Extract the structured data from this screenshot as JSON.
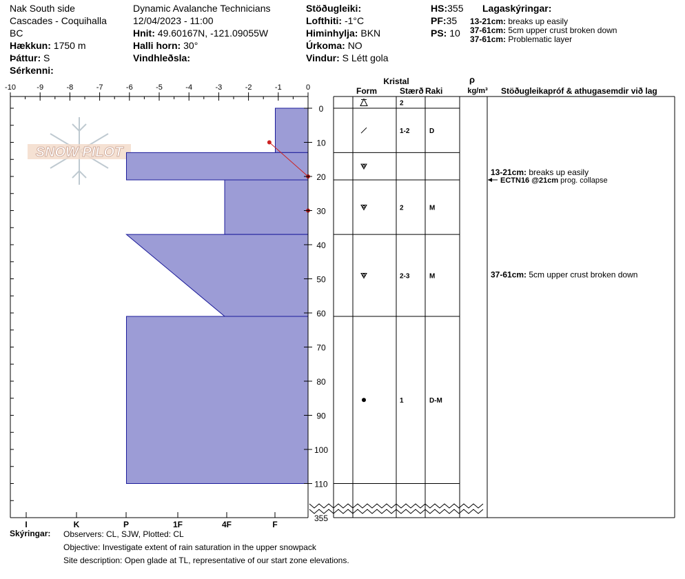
{
  "header": {
    "location": "Nak South side",
    "range": "Cascades - Coquihalla",
    "province": "BC",
    "elevation_label": "Hækkun:",
    "elevation": "1750 m",
    "aspect_label": "Þáttur:",
    "aspect": "S",
    "features_label": "Sérkenni:",
    "organization": "Dynamic Avalanche Technicians",
    "datetime": "12/04/2023 - 11:00",
    "coords_label": "Hnit:",
    "coords": "49.60167N, -121.09055W",
    "slope_label": "Halli horn:",
    "slope": "30°",
    "wind_loading_label": "Vindhleðsla:",
    "stability_label": "Stöðugleiki:",
    "air_temp_label": "Lofthiti:",
    "air_temp": "-1°C",
    "sky_label": "Himinhylja:",
    "sky": "BKN",
    "precip_label": "Úrkoma:",
    "precip": "NO",
    "wind_label": "Vindur:",
    "wind": "S Létt gola",
    "hs_label": "HS:",
    "hs": "355",
    "pf_label": "PF:",
    "pf": "35",
    "ps_label": "PS:",
    "ps": "10",
    "layer_notes_title": "Lagaskýringar:",
    "layer_notes": [
      {
        "range": "13-21cm:",
        "text": "breaks up easily"
      },
      {
        "range": "37-61cm:",
        "text": "5cm upper crust broken down"
      },
      {
        "range": "37-61cm:",
        "text": "Problematic layer"
      }
    ]
  },
  "logo_text": "SNOW PILOT",
  "table_headers": {
    "crystal": "Kristal",
    "form": "Form",
    "size": "Stærð",
    "moisture": "Raki",
    "density_symbol": "ρ",
    "density_unit": "kg/m³",
    "tests": "Stöðugleikapróf & athugasemdir við lag"
  },
  "layers": [
    {
      "top": 0,
      "bottom": 0,
      "form": "surface-hoar",
      "size": "2",
      "moisture": ""
    },
    {
      "top": 0,
      "bottom": 13,
      "form": "fragments",
      "size": "1-2",
      "moisture": "D"
    },
    {
      "top": 13,
      "bottom": 21,
      "form": "faceted-rounded",
      "size": "",
      "moisture": ""
    },
    {
      "top": 21,
      "bottom": 37,
      "form": "faceted-rounded",
      "size": "2",
      "moisture": "M"
    },
    {
      "top": 37,
      "bottom": 61,
      "form": "faceted-rounded",
      "size": "2-3",
      "moisture": "M"
    },
    {
      "top": 61,
      "bottom": 110,
      "form": "rounded",
      "size": "1",
      "moisture": "D-M"
    }
  ],
  "comments": [
    {
      "depth": 20,
      "range": "13-21cm:",
      "text": "breaks up easily"
    },
    {
      "depth": 50,
      "range": "37-61cm:",
      "text": "5cm upper crust broken down"
    }
  ],
  "stability_test": {
    "depth": 21,
    "code": "ECTN16 @21cm",
    "text": "prog. collapse"
  },
  "footer": {
    "label": "Skýringar:",
    "observers": "Observers: CL, SJW, Plotted: CL",
    "objective": "Objective: Investigate extent of rain saturation in the upper snowpack",
    "site": "Site description: Open glade at TL, representative of our start zone elevations."
  },
  "chart_data": {
    "type": "area",
    "title": "",
    "xlabel": "",
    "ylabel": "",
    "ylim": [
      0,
      115
    ],
    "top_axis_ticks": [
      -10,
      -9,
      -8,
      -7,
      -6,
      -5,
      -4,
      -3,
      -2,
      -1,
      0
    ],
    "hardness_ticks": [
      "I",
      "K",
      "P",
      "1F",
      "4F",
      "F"
    ],
    "depth_ticks": [
      0,
      10,
      20,
      30,
      40,
      50,
      60,
      70,
      80,
      90,
      100,
      110
    ],
    "bottom_label": "355",
    "fill_color": "#9c9cd6",
    "edge_color": "#1a1a99",
    "temp_color": "#cc2222",
    "hardness_profile": [
      {
        "top": 0,
        "bottom": 13,
        "hardness_top": 1.1,
        "hardness_bottom": 1.1
      },
      {
        "top": 13,
        "bottom": 21,
        "hardness_top": 6.1,
        "hardness_bottom": 6.1
      },
      {
        "top": 21,
        "bottom": 37,
        "hardness_top": 2.8,
        "hardness_bottom": 2.8
      },
      {
        "top": 37,
        "bottom": 61,
        "hardness_top": 6.1,
        "hardness_bottom": 2.8
      },
      {
        "top": 61,
        "bottom": 110,
        "hardness_top": 6.1,
        "hardness_bottom": 6.1
      }
    ],
    "temperature_profile": [
      {
        "depth": 10,
        "temp": -1.3
      },
      {
        "depth": 20,
        "temp": 0
      },
      {
        "depth": 30,
        "temp": 0
      }
    ]
  }
}
